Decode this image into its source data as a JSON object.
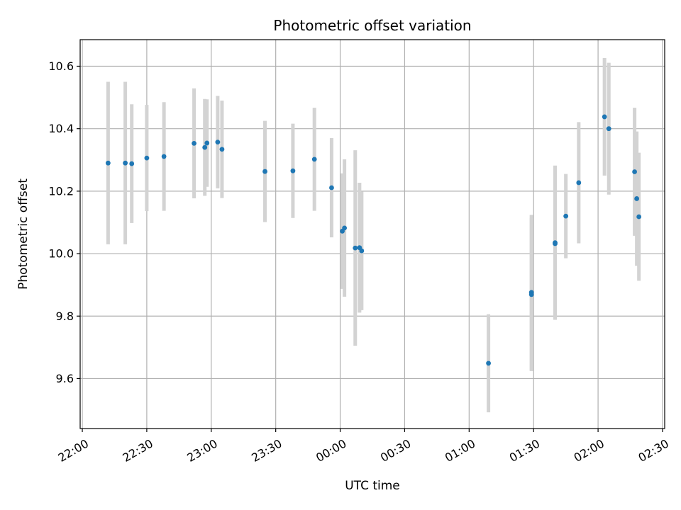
{
  "chart_data": {
    "type": "scatter",
    "title": "Photometric offset variation",
    "xlabel": "UTC time",
    "ylabel": "Photometric offset",
    "grid": true,
    "x_ticks": [
      "22:00",
      "22:30",
      "23:00",
      "23:30",
      "00:00",
      "00:30",
      "01:00",
      "01:30",
      "02:00",
      "02:30"
    ],
    "y_ticks": [
      "9.6",
      "9.8",
      "10.0",
      "10.2",
      "10.4",
      "10.6"
    ],
    "xlim": [
      "21:59",
      "02:31"
    ],
    "ylim": [
      9.44,
      10.685
    ],
    "colors": {
      "points": "#1f77b4",
      "errorbars": "#d3d3d3",
      "grid": "#b0b0b0"
    },
    "series": [
      {
        "points": [
          {
            "x": "22:12",
            "y": 10.29,
            "err": 0.26
          },
          {
            "x": "22:20",
            "y": 10.29,
            "err": 0.26
          },
          {
            "x": "22:23",
            "y": 10.288,
            "err": 0.19
          },
          {
            "x": "22:30",
            "y": 10.306,
            "err": 0.17
          },
          {
            "x": "22:38",
            "y": 10.311,
            "err": 0.174
          },
          {
            "x": "22:52",
            "y": 10.353,
            "err": 0.176
          },
          {
            "x": "22:57",
            "y": 10.34,
            "err": 0.155
          },
          {
            "x": "22:58",
            "y": 10.354,
            "err": 0.14
          },
          {
            "x": "23:03",
            "y": 10.357,
            "err": 0.148
          },
          {
            "x": "23:05",
            "y": 10.334,
            "err": 0.156
          },
          {
            "x": "23:25",
            "y": 10.263,
            "err": 0.162
          },
          {
            "x": "23:38",
            "y": 10.265,
            "err": 0.151
          },
          {
            "x": "23:48",
            "y": 10.302,
            "err": 0.165
          },
          {
            "x": "23:56",
            "y": 10.211,
            "err": 0.159
          },
          {
            "x": "00:01",
            "y": 10.072,
            "err": 0.185
          },
          {
            "x": "00:02",
            "y": 10.082,
            "err": 0.22
          },
          {
            "x": "00:07",
            "y": 10.018,
            "err": 0.313
          },
          {
            "x": "00:09",
            "y": 10.019,
            "err": 0.208
          },
          {
            "x": "00:10",
            "y": 10.009,
            "err": 0.19
          },
          {
            "x": "01:09",
            "y": 9.649,
            "err": 0.157
          },
          {
            "x": "01:29",
            "y": 9.876,
            "err": 0.248
          },
          {
            "x": "01:29",
            "y": 9.869,
            "err": 0.245
          },
          {
            "x": "01:40",
            "y": 10.035,
            "err": 0.247
          },
          {
            "x": "01:40",
            "y": 10.032,
            "err": 0.198
          },
          {
            "x": "01:45",
            "y": 10.12,
            "err": 0.135
          },
          {
            "x": "01:51",
            "y": 10.227,
            "err": 0.194
          },
          {
            "x": "02:03",
            "y": 10.438,
            "err": 0.188
          },
          {
            "x": "02:05",
            "y": 10.4,
            "err": 0.211
          },
          {
            "x": "02:17",
            "y": 10.262,
            "err": 0.205
          },
          {
            "x": "02:18",
            "y": 10.176,
            "err": 0.215
          },
          {
            "x": "02:19",
            "y": 10.118,
            "err": 0.205
          }
        ]
      }
    ]
  }
}
